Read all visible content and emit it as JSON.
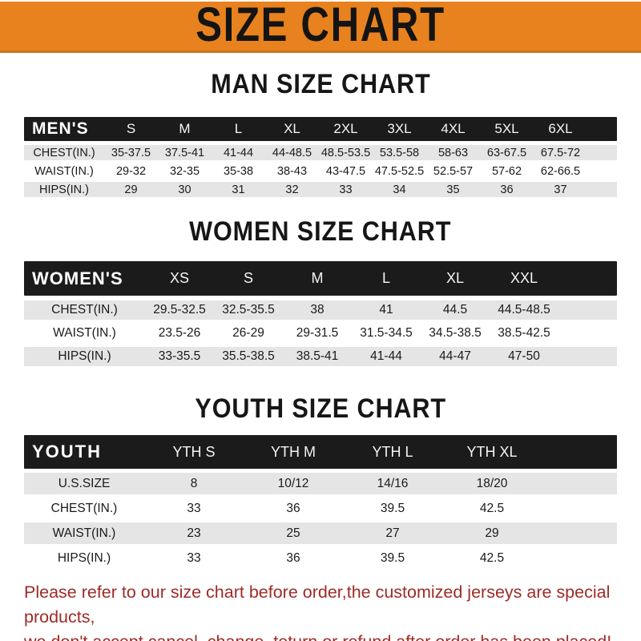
{
  "banner": {
    "title": "SIZE CHART"
  },
  "men": {
    "heading": "MAN SIZE CHART",
    "header": {
      "label": "MEN'S",
      "cols": [
        "S",
        "M",
        "L",
        "XL",
        "2XL",
        "3XL",
        "4XL",
        "5XL",
        "6XL"
      ]
    },
    "rows": [
      {
        "label": "CHEST(IN.)",
        "values": [
          "35-37.5",
          "37.5-41",
          "41-44",
          "44-48.5",
          "48.5-53.5",
          "53.5-58",
          "58-63",
          "63-67.5",
          "67.5-72"
        ]
      },
      {
        "label": "WAIST(IN.)",
        "values": [
          "29-32",
          "32-35",
          "35-38",
          "38-43",
          "43-47.5",
          "47.5-52.5",
          "52.5-57",
          "57-62",
          "62-66.5"
        ]
      },
      {
        "label": "HIPS(IN.)",
        "values": [
          "29",
          "30",
          "31",
          "32",
          "33",
          "34",
          "35",
          "36",
          "37"
        ]
      }
    ]
  },
  "women": {
    "heading": "WOMEN SIZE CHART",
    "header": {
      "label": "WOMEN'S",
      "cols": [
        "XS",
        "S",
        "M",
        "L",
        "XL",
        "XXL"
      ]
    },
    "rows": [
      {
        "label": "CHEST(IN.)",
        "values": [
          "29.5-32.5",
          "32.5-35.5",
          "38",
          "41",
          "44.5",
          "44.5-48.5"
        ]
      },
      {
        "label": "WAIST(IN.)",
        "values": [
          "23.5-26",
          "26-29",
          "29-31.5",
          "31.5-34.5",
          "34.5-38.5",
          "38.5-42.5"
        ]
      },
      {
        "label": "HIPS(IN.)",
        "values": [
          "33-35.5",
          "35.5-38.5",
          "38.5-41",
          "41-44",
          "44-47",
          "47-50"
        ]
      }
    ]
  },
  "youth": {
    "heading": "YOUTH SIZE CHART",
    "header": {
      "label": "YOUTH",
      "cols": [
        "YTH S",
        "YTH M",
        "YTH L",
        "YTH XL"
      ]
    },
    "rows": [
      {
        "label": "U.S.SIZE",
        "values": [
          "8",
          "10/12",
          "14/16",
          "18/20"
        ]
      },
      {
        "label": "CHEST(IN.)",
        "values": [
          "33",
          "36",
          "39.5",
          "42.5"
        ]
      },
      {
        "label": "WAIST(IN.)",
        "values": [
          "23",
          "25",
          "27",
          "29"
        ]
      },
      {
        "label": "HIPS(IN.)",
        "values": [
          "33",
          "36",
          "39.5",
          "42.5"
        ]
      }
    ]
  },
  "footer": {
    "line1": "Please refer to our size chart before order,the customized jerseys are special products,",
    "line2": "we don't accept cancel, change, teturn or refund after order has been placed!"
  },
  "colors": {
    "banner_bg": "#e8821e",
    "banner_edge": "#c9741a",
    "bar_bg": "#1b1b1b",
    "row_gray": "#e5e5e5",
    "notice_red": "#9e2b26"
  }
}
